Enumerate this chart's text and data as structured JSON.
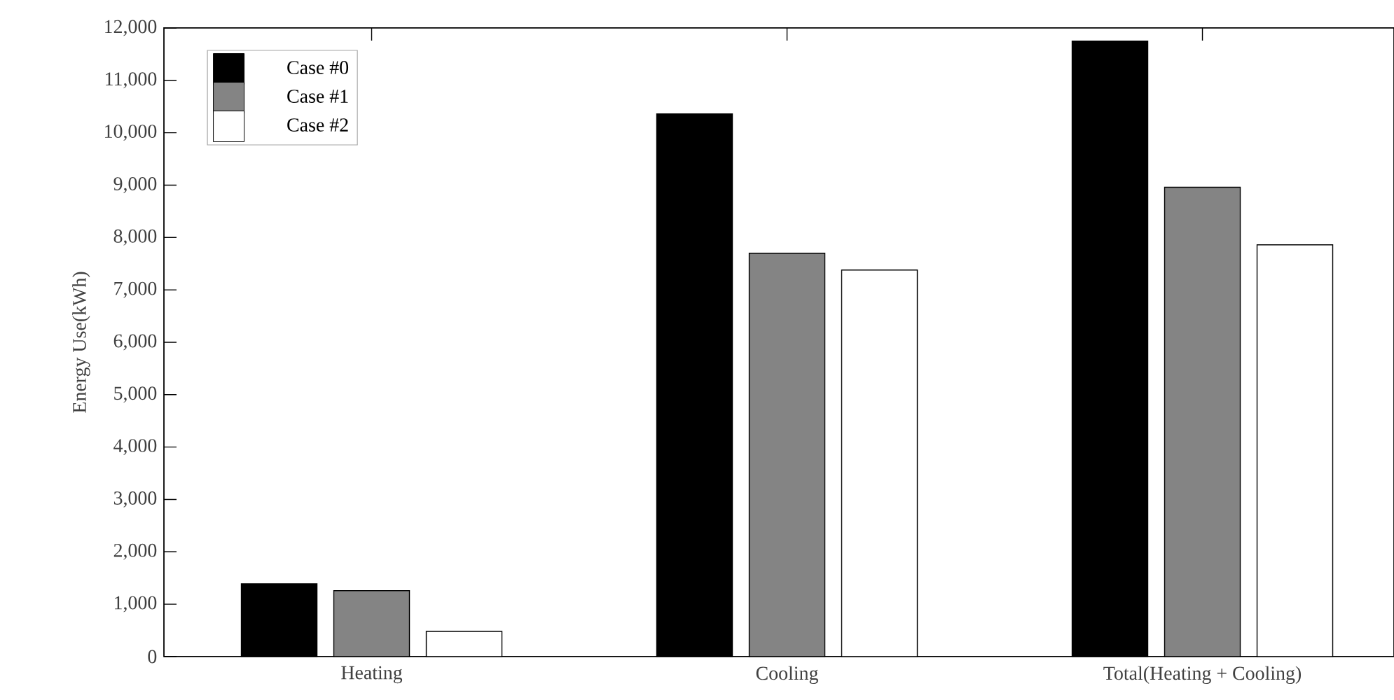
{
  "chart_data": {
    "type": "bar",
    "ylabel": "Energy Use(kWh)",
    "categories": [
      "Heating",
      "Cooling",
      "Total(Heating + Cooling)"
    ],
    "series": [
      {
        "name": "Case #0",
        "color": "#000000",
        "values": [
          1390,
          10360,
          11750
        ]
      },
      {
        "name": "Case #1",
        "color": "#848484",
        "values": [
          1260,
          7700,
          8960
        ]
      },
      {
        "name": "Case #2",
        "color": "#ffffff",
        "values": [
          480,
          7380,
          7860
        ]
      }
    ],
    "ylim": [
      0,
      12000
    ],
    "yticks": [
      0,
      {
        "value": 1000,
        "label": "1,000"
      },
      {
        "value": 2000,
        "label": "2,000"
      },
      {
        "value": 3000,
        "label": "3,000"
      },
      {
        "value": 4000,
        "label": "4,000"
      },
      {
        "value": 5000,
        "label": "5,000"
      },
      {
        "value": 6000,
        "label": "6,000"
      },
      {
        "value": 7000,
        "label": "7,000"
      },
      {
        "value": 8000,
        "label": "8,000"
      },
      {
        "value": 9000,
        "label": "9,000"
      },
      {
        "value": 10000,
        "label": "10,000"
      },
      {
        "value": 11000,
        "label": "11,000"
      },
      {
        "value": 12000,
        "label": "12,000"
      }
    ],
    "grid": false,
    "legend": "top left"
  }
}
